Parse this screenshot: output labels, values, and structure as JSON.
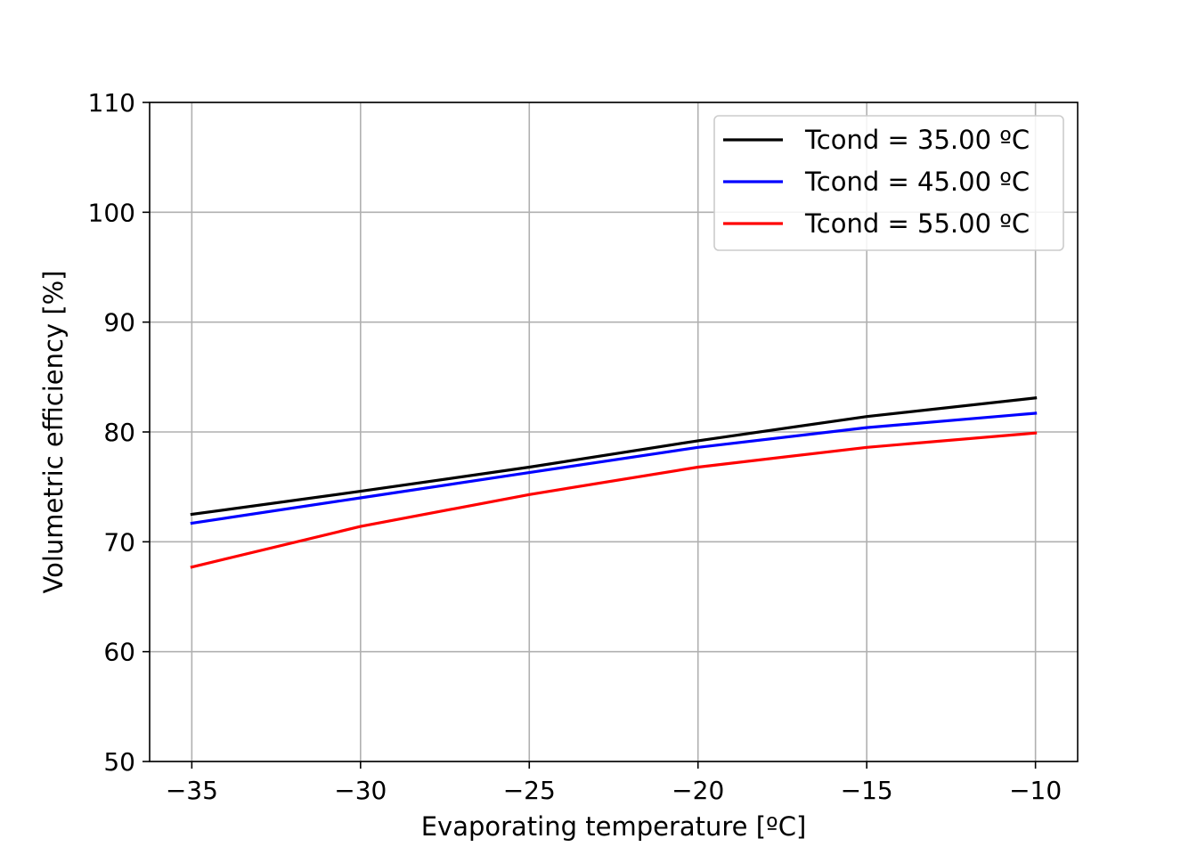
{
  "chart_data": {
    "type": "line",
    "title": "",
    "xlabel": "Evaporating temperature [ºC]",
    "ylabel": "Volumetric efficiency [%]",
    "xlim": [
      -36.25,
      -8.75
    ],
    "ylim": [
      50,
      110
    ],
    "xticks": [
      -35,
      -30,
      -25,
      -20,
      -15,
      -10
    ],
    "xtick_labels": [
      "−35",
      "−30",
      "−25",
      "−20",
      "−15",
      "−10"
    ],
    "yticks": [
      50,
      60,
      70,
      80,
      90,
      100,
      110
    ],
    "ytick_labels": [
      "50",
      "60",
      "70",
      "80",
      "90",
      "100",
      "110"
    ],
    "grid": true,
    "legend_position": "top-right",
    "x": [
      -35,
      -30,
      -25,
      -20,
      -15,
      -10
    ],
    "series": [
      {
        "name": "Tcond = 35.00 ºC",
        "color": "#000000",
        "values": [
          72.5,
          74.6,
          76.8,
          79.2,
          81.4,
          83.1
        ]
      },
      {
        "name": "Tcond = 45.00 ºC",
        "color": "#0000ff",
        "values": [
          71.7,
          74.0,
          76.3,
          78.6,
          80.4,
          81.7
        ]
      },
      {
        "name": "Tcond = 55.00 ºC",
        "color": "#ff0000",
        "values": [
          67.7,
          71.4,
          74.3,
          76.8,
          78.6,
          79.9
        ]
      }
    ]
  }
}
